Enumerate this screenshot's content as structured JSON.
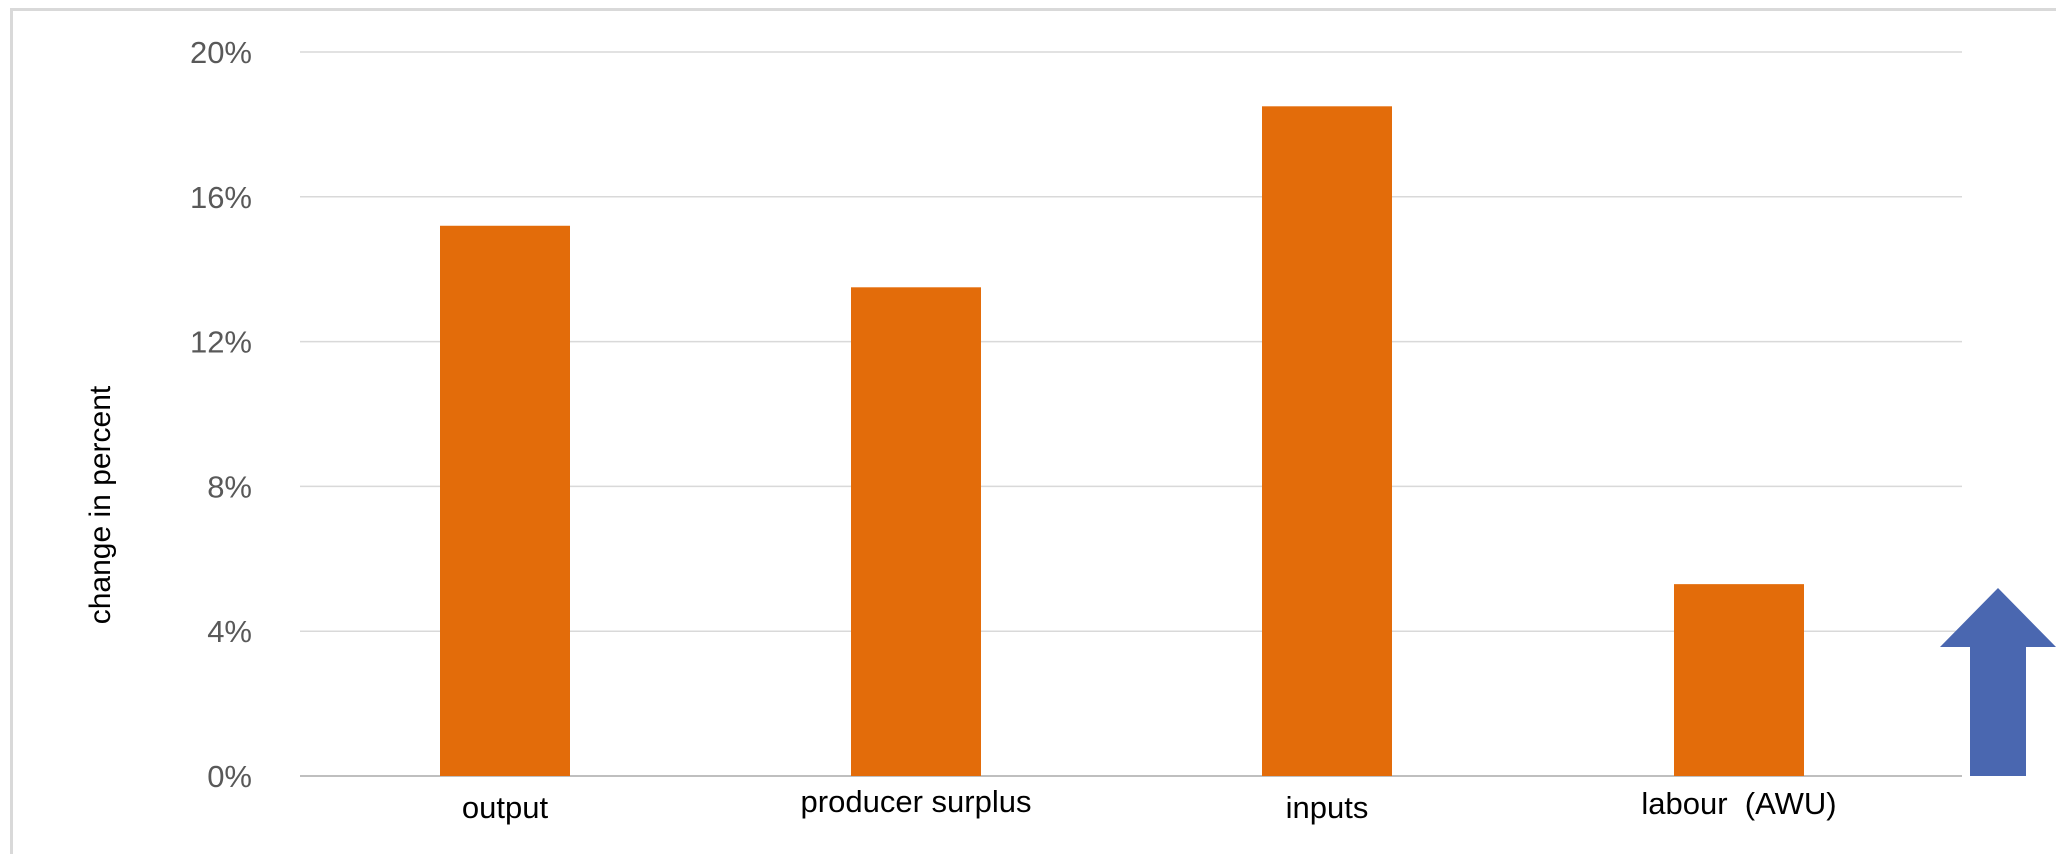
{
  "chart_data": {
    "type": "bar",
    "title": "",
    "xlabel": "",
    "ylabel": "change in percent",
    "categories": [
      "output",
      "producer surplus",
      "inputs",
      "labour  (AWU)"
    ],
    "values": [
      15.2,
      13.5,
      18.5,
      5.3
    ],
    "ylim": [
      0,
      20
    ],
    "yticks": [
      0,
      4,
      8,
      12,
      16,
      20
    ],
    "ytick_labels": [
      "0%",
      "4%",
      "8%",
      "12%",
      "16%",
      "20%"
    ],
    "grid": true,
    "legend": "none"
  },
  "colors": {
    "bar": "#e36c0a",
    "grid": "#d9d9d9",
    "axis": "#bfbfbf",
    "tick_text": "#595959",
    "label_text": "#000000",
    "arrow": "#4a67b0"
  },
  "annotation": {
    "arrow_icon": "up-arrow-icon"
  }
}
